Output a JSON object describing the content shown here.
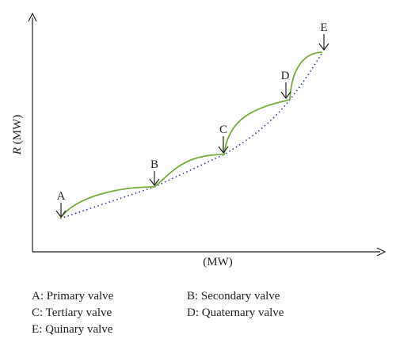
{
  "axes": {
    "y_label_italic": "R",
    "y_label_unit": "(MW)",
    "x_label": "(MW)"
  },
  "points": [
    {
      "id": "A",
      "label": "A"
    },
    {
      "id": "B",
      "label": "B"
    },
    {
      "id": "C",
      "label": "C"
    },
    {
      "id": "D",
      "label": "D"
    },
    {
      "id": "E",
      "label": "E"
    }
  ],
  "legend": {
    "a": "A: Primary valve",
    "b": "B: Secondary valve",
    "c": "C: Tertiary valve",
    "d": "D: Quaternary valve",
    "e": "E: Quinary valve"
  },
  "colors": {
    "valve_curve": "#7aac3a",
    "envelope_line": "#2c3a9c",
    "axis": "#222222"
  }
}
